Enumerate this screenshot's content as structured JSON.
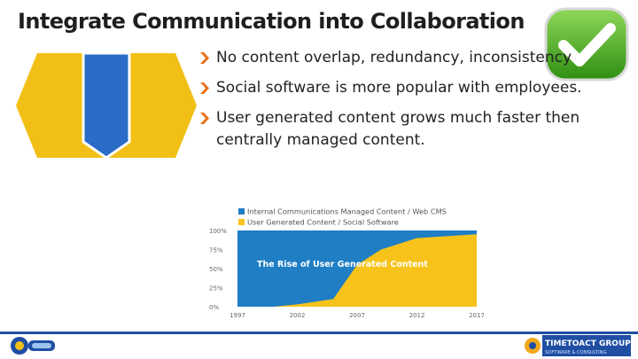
{
  "slide": {
    "title": "Integrate Communication into Collaboration",
    "bullets": [
      "No content overlap, redundancy, inconsistency",
      "Social software is more popular with employees.",
      "User generated content grows much faster then centrally managed content."
    ]
  },
  "colors": {
    "accent_orange": "#e8701a",
    "graphic_yellow": "#f2bf16",
    "graphic_blue": "#2a6cc7",
    "check_green": "#4caf24",
    "chart_blue": "#1f7ec4",
    "chart_yellow": "#f7c31b"
  },
  "icons": {
    "badge": "checkmark-icon",
    "bullet": "chevron-right-icon"
  },
  "chart_data": {
    "type": "area",
    "stacked": true,
    "title": "The Rise of User Generated Content",
    "legend_position": "top",
    "series": [
      {
        "name": "Internal Communications Managed Content / Web CMS",
        "color": "#1f7ec4"
      },
      {
        "name": "User Generated Content / Social Software",
        "color": "#f7c31b",
        "values": [
          {
            "x": 1997,
            "y": 0
          },
          {
            "x": 2000,
            "y": 0
          },
          {
            "x": 2002,
            "y": 3
          },
          {
            "x": 2005,
            "y": 10
          },
          {
            "x": 2007,
            "y": 55
          },
          {
            "x": 2009,
            "y": 75
          },
          {
            "x": 2012,
            "y": 90
          },
          {
            "x": 2015,
            "y": 93
          },
          {
            "x": 2017,
            "y": 95
          }
        ]
      }
    ],
    "x_ticks": [
      "1997",
      "2002",
      "2007",
      "2012",
      "2017"
    ],
    "y_ticks": [
      "100%",
      "75%",
      "50%",
      "25%",
      "0%"
    ],
    "xlim": [
      1997,
      2017
    ],
    "ylim": [
      0,
      100
    ]
  },
  "footer": {
    "right_logo_main": "TIMETOACT GROUP",
    "right_logo_sub": "SOFTWARE & CONSULTING"
  }
}
